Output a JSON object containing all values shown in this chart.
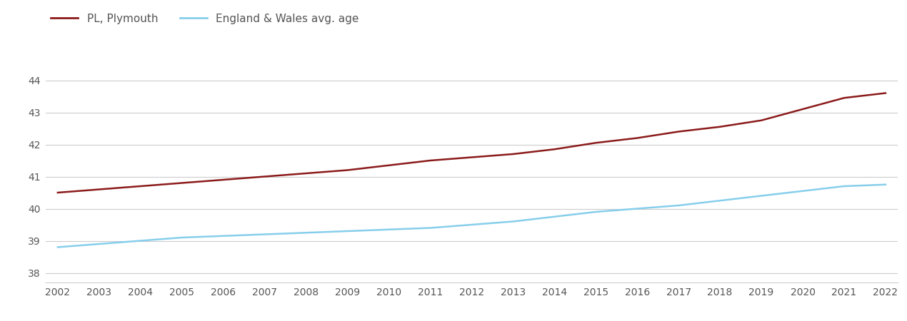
{
  "years": [
    2002,
    2003,
    2004,
    2005,
    2006,
    2007,
    2008,
    2009,
    2010,
    2011,
    2012,
    2013,
    2014,
    2015,
    2016,
    2017,
    2018,
    2019,
    2020,
    2021,
    2022
  ],
  "plymouth": [
    40.5,
    40.6,
    40.7,
    40.8,
    40.9,
    41.0,
    41.1,
    41.2,
    41.35,
    41.5,
    41.6,
    41.7,
    41.85,
    42.05,
    42.2,
    42.4,
    42.55,
    42.75,
    43.1,
    43.45,
    43.6
  ],
  "england_wales": [
    38.8,
    38.9,
    39.0,
    39.1,
    39.15,
    39.2,
    39.25,
    39.3,
    39.35,
    39.4,
    39.5,
    39.6,
    39.75,
    39.9,
    40.0,
    40.1,
    40.25,
    40.4,
    40.55,
    40.7,
    40.75
  ],
  "plymouth_color": "#8b1a1a",
  "england_wales_color": "#87CEEB",
  "plymouth_label": "PL, Plymouth",
  "england_wales_label": "England & Wales avg. age",
  "ylim": [
    37.7,
    44.7
  ],
  "yticks": [
    38,
    39,
    40,
    41,
    42,
    43,
    44
  ],
  "background_color": "#ffffff",
  "grid_color": "#cccccc",
  "line_width": 1.8,
  "tick_label_color": "#555555",
  "tick_fontsize": 10,
  "legend_fontsize": 11
}
